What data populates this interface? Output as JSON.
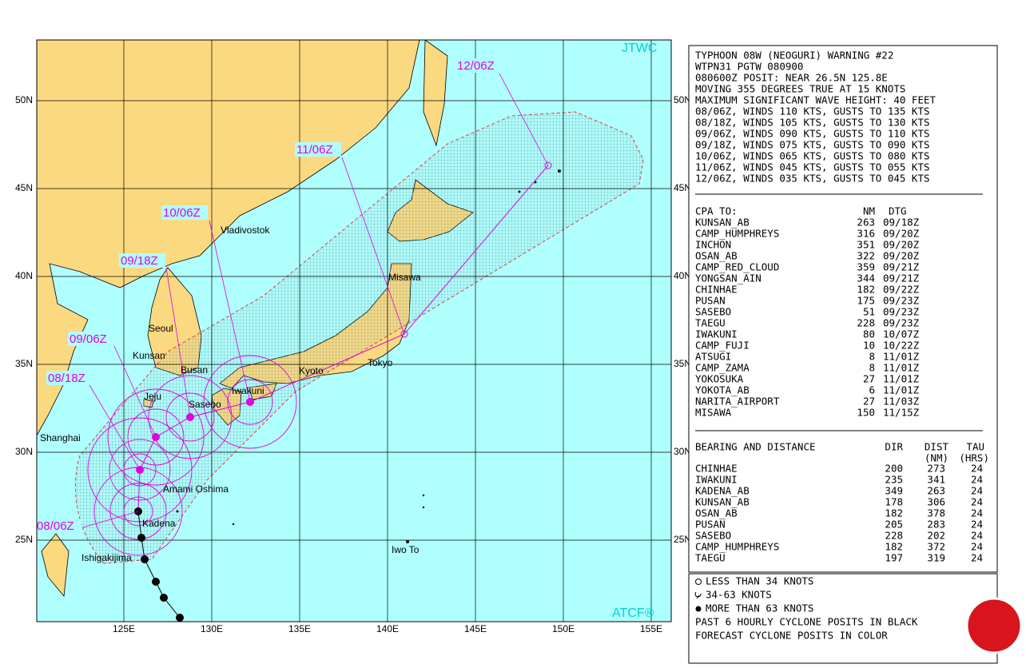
{
  "map": {
    "top_label": "JTWC",
    "bottom_label": "ATCF®",
    "lat_ticks": [
      {
        "value": 50,
        "label": "50N"
      },
      {
        "value": 45,
        "label": "45N"
      },
      {
        "value": 40,
        "label": "40N"
      },
      {
        "value": 35,
        "label": "35N"
      },
      {
        "value": 30,
        "label": "30N"
      },
      {
        "value": 25,
        "label": "25N"
      }
    ],
    "lon_ticks": [
      {
        "value": 125,
        "label": "125E"
      },
      {
        "value": 130,
        "label": "130E"
      },
      {
        "value": 135,
        "label": "135E"
      },
      {
        "value": 140,
        "label": "140E"
      },
      {
        "value": 145,
        "label": "145E"
      },
      {
        "value": 150,
        "label": "150E"
      },
      {
        "value": 155,
        "label": "155E"
      }
    ],
    "places": [
      "Vladivostok",
      "Seoul",
      "Kunsan",
      "Busan",
      "Jeju",
      "Sasebo",
      "Iwakuni",
      "Kyoto",
      "Tokyo",
      "Misawa",
      "Shanghai",
      "Amami Oshima",
      "Kadena",
      "Ishigakijima",
      "Iwo To"
    ],
    "track_labels": [
      "12/06Z",
      "11/06Z",
      "10/06Z",
      "09/18Z",
      "09/06Z",
      "08/18Z",
      "08/06Z"
    ]
  },
  "warning": [
    "TYPHOON 08W (NEOGURI) WARNING #22",
    "WTPN31 PGTW 080900",
    "080600Z POSIT: NEAR 26.5N 125.8E",
    "MOVING 355 DEGREES TRUE AT 15 KNOTS",
    "MAXIMUM SIGNIFICANT WAVE HEIGHT: 40 FEET",
    "08/06Z, WINDS 110 KTS, GUSTS TO 135 KTS",
    "08/18Z, WINDS 105 KTS, GUSTS TO 130 KTS",
    "09/06Z, WINDS 090 KTS, GUSTS TO 110 KTS",
    "09/18Z, WINDS 075 KTS, GUSTS TO 090 KTS",
    "10/06Z, WINDS 065 KTS, GUSTS TO 080 KTS",
    "11/06Z, WINDS 045 KTS, GUSTS TO 055 KTS",
    "12/06Z, WINDS 035 KTS, GUSTS TO 045 KTS"
  ],
  "cpa": {
    "header": [
      "CPA TO:",
      "NM",
      "DTG"
    ],
    "rows": [
      [
        "KUNSAN_AB",
        "263",
        "09/18Z"
      ],
      [
        "CAMP_HUMPHREYS",
        "316",
        "09/20Z"
      ],
      [
        "INCHON",
        "351",
        "09/20Z"
      ],
      [
        "OSAN_AB",
        "322",
        "09/20Z"
      ],
      [
        "CAMP_RED_CLOUD",
        "359",
        "09/21Z"
      ],
      [
        "YONGSAN_AIN",
        "344",
        "09/21Z"
      ],
      [
        "CHINHAE",
        "182",
        "09/22Z"
      ],
      [
        "PUSAN",
        "175",
        "09/23Z"
      ],
      [
        "SASEBO",
        "51",
        "09/23Z"
      ],
      [
        "TAEGU",
        "228",
        "09/23Z"
      ],
      [
        "IWAKUNI",
        "80",
        "10/07Z"
      ],
      [
        "CAMP_FUJI",
        "10",
        "10/22Z"
      ],
      [
        "ATSUGI",
        "8",
        "11/01Z"
      ],
      [
        "CAMP_ZAMA",
        "8",
        "11/01Z"
      ],
      [
        "YOKOSUKA",
        "27",
        "11/01Z"
      ],
      [
        "YOKOTA_AB",
        "6",
        "11/01Z"
      ],
      [
        "NARITA_AIRPORT",
        "27",
        "11/03Z"
      ],
      [
        "MISAWA",
        "150",
        "11/15Z"
      ]
    ]
  },
  "bearing": {
    "header": [
      "BEARING AND DISTANCE",
      "DIR",
      "DIST",
      "TAU"
    ],
    "subheader": [
      "(NM)",
      "(HRS)"
    ],
    "rows": [
      [
        "CHINHAE",
        "200",
        "273",
        "24"
      ],
      [
        "IWAKUNI",
        "235",
        "341",
        "24"
      ],
      [
        "KADENA_AB",
        "349",
        "263",
        "24"
      ],
      [
        "KUNSAN_AB",
        "178",
        "306",
        "24"
      ],
      [
        "OSAN_AB",
        "182",
        "378",
        "24"
      ],
      [
        "PUSAN",
        "205",
        "283",
        "24"
      ],
      [
        "SASEBO",
        "228",
        "202",
        "24"
      ],
      [
        "CAMP_HUMPHREYS",
        "182",
        "372",
        "24"
      ],
      [
        "TAEGU",
        "197",
        "319",
        "24"
      ]
    ]
  },
  "legend": [
    "LESS THAN 34 KNOTS",
    "34-63 KNOTS",
    "MORE THAN 63 KNOTS",
    "PAST 6 HOURLY CYCLONE POSITS IN BLACK",
    "FORECAST CYCLONE POSITS IN COLOR"
  ]
}
